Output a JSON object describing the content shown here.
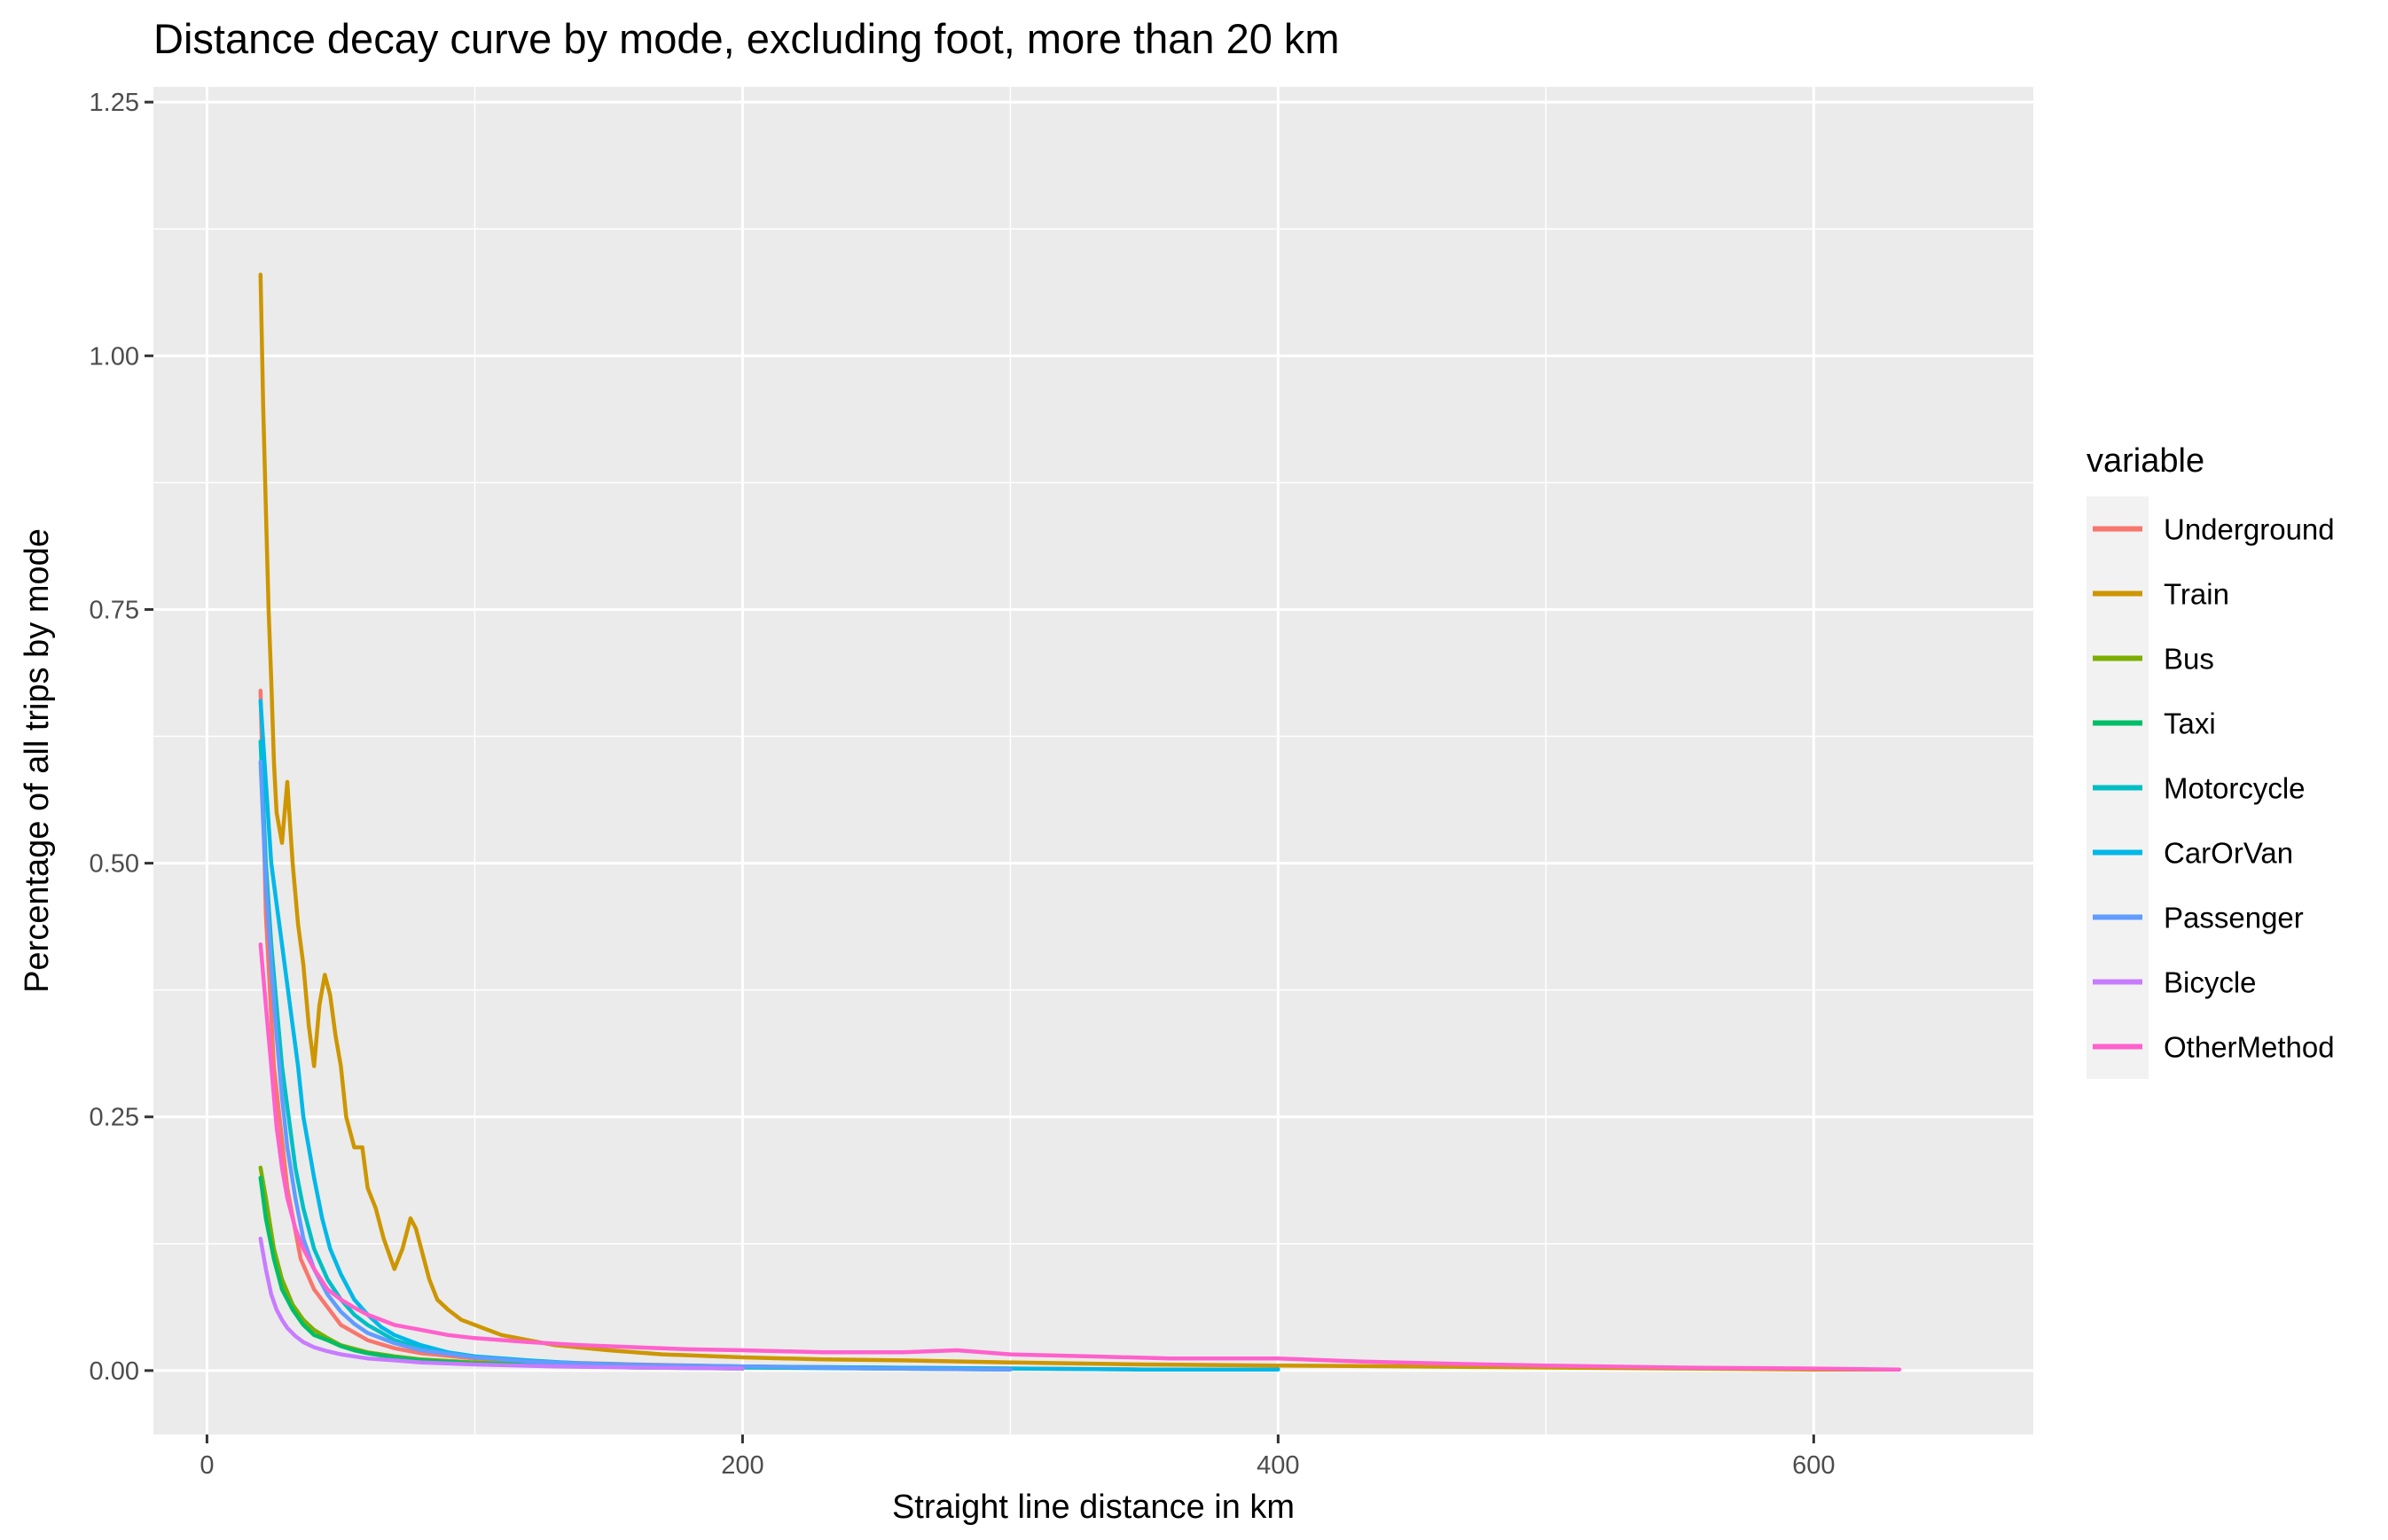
{
  "chart_data": {
    "type": "line",
    "title": "Distance decay curve by mode, excluding foot, more than 20 km",
    "xlabel": "Straight line distance in km",
    "ylabel": "Percentage of all trips by mode",
    "xlim": [
      -20,
      682
    ],
    "ylim": [
      -0.063,
      1.265
    ],
    "x_ticks": [
      0,
      200,
      400,
      600
    ],
    "y_ticks": [
      0.0,
      0.25,
      0.5,
      0.75,
      1.0,
      1.25
    ],
    "x_tick_labels": [
      "0",
      "200",
      "400",
      "600"
    ],
    "y_tick_labels": [
      "0.00",
      "0.25",
      "0.50",
      "0.75",
      "1.00",
      "1.25"
    ],
    "grid": true,
    "legend": {
      "title": "variable",
      "position": "right"
    },
    "series": [
      {
        "name": "Underground",
        "color": "#F8766D",
        "x": [
          20,
          22,
          25,
          30,
          35,
          40,
          50,
          60,
          70,
          80,
          100,
          130,
          160,
          200,
          250,
          300,
          350
        ],
        "y": [
          0.67,
          0.45,
          0.3,
          0.18,
          0.11,
          0.08,
          0.045,
          0.03,
          0.022,
          0.017,
          0.012,
          0.008,
          0.006,
          0.004,
          0.003,
          0.002,
          0.001
        ]
      },
      {
        "name": "Train",
        "color": "#CD9600",
        "x": [
          20,
          21,
          22,
          23,
          24,
          25,
          26,
          28,
          30,
          32,
          34,
          36,
          38,
          40,
          42,
          44,
          46,
          48,
          50,
          52,
          55,
          58,
          60,
          63,
          66,
          70,
          73,
          76,
          78,
          80,
          83,
          86,
          90,
          95,
          100,
          105,
          110,
          120,
          130,
          150,
          170,
          200,
          230,
          260,
          300,
          350,
          400,
          450,
          500,
          550,
          600,
          630
        ],
        "y": [
          1.08,
          0.95,
          0.85,
          0.75,
          0.68,
          0.6,
          0.55,
          0.52,
          0.58,
          0.5,
          0.44,
          0.4,
          0.34,
          0.3,
          0.36,
          0.39,
          0.37,
          0.33,
          0.3,
          0.25,
          0.22,
          0.22,
          0.18,
          0.16,
          0.13,
          0.1,
          0.12,
          0.15,
          0.14,
          0.12,
          0.09,
          0.07,
          0.06,
          0.05,
          0.045,
          0.04,
          0.035,
          0.03,
          0.025,
          0.02,
          0.016,
          0.013,
          0.011,
          0.01,
          0.008,
          0.006,
          0.005,
          0.004,
          0.003,
          0.002,
          0.001,
          0.001
        ]
      },
      {
        "name": "Bus",
        "color": "#7CAE00",
        "x": [
          20,
          22,
          25,
          28,
          32,
          36,
          40,
          45,
          50,
          60,
          70,
          80,
          100,
          130,
          160,
          200
        ],
        "y": [
          0.2,
          0.17,
          0.12,
          0.09,
          0.065,
          0.05,
          0.04,
          0.032,
          0.025,
          0.018,
          0.014,
          0.011,
          0.008,
          0.005,
          0.004,
          0.003
        ]
      },
      {
        "name": "Taxi",
        "color": "#00BE67",
        "x": [
          20,
          22,
          25,
          28,
          32,
          36,
          40,
          45,
          50,
          55,
          60,
          70,
          80,
          100,
          130,
          160,
          200
        ],
        "y": [
          0.19,
          0.15,
          0.11,
          0.08,
          0.06,
          0.045,
          0.035,
          0.03,
          0.024,
          0.02,
          0.017,
          0.013,
          0.01,
          0.007,
          0.005,
          0.003,
          0.002
        ]
      },
      {
        "name": "Motorcycle",
        "color": "#00BFC4",
        "x": [
          20,
          22,
          24,
          26,
          28,
          30,
          33,
          36,
          40,
          45,
          50,
          55,
          60,
          70,
          80,
          90,
          100,
          120,
          140,
          170,
          200,
          250,
          300
        ],
        "y": [
          0.62,
          0.5,
          0.42,
          0.36,
          0.3,
          0.26,
          0.2,
          0.16,
          0.12,
          0.09,
          0.07,
          0.055,
          0.045,
          0.03,
          0.022,
          0.017,
          0.013,
          0.009,
          0.007,
          0.005,
          0.003,
          0.002,
          0.001
        ]
      },
      {
        "name": "CarOrVan",
        "color": "#00B8E7",
        "x": [
          20,
          22,
          24,
          26,
          28,
          30,
          32,
          34,
          36,
          38,
          40,
          43,
          46,
          50,
          55,
          60,
          65,
          70,
          80,
          90,
          100,
          120,
          140,
          170,
          200,
          250,
          300,
          350,
          400
        ],
        "y": [
          0.66,
          0.58,
          0.5,
          0.46,
          0.42,
          0.38,
          0.34,
          0.3,
          0.25,
          0.22,
          0.19,
          0.15,
          0.12,
          0.095,
          0.07,
          0.055,
          0.043,
          0.035,
          0.025,
          0.018,
          0.014,
          0.01,
          0.007,
          0.005,
          0.004,
          0.003,
          0.002,
          0.001,
          0.001
        ]
      },
      {
        "name": "Passenger",
        "color": "#619CFF",
        "x": [
          20,
          22,
          24,
          26,
          28,
          30,
          33,
          36,
          40,
          45,
          50,
          55,
          60,
          70,
          80,
          100,
          120,
          150,
          200,
          250,
          300
        ],
        "y": [
          0.6,
          0.48,
          0.4,
          0.33,
          0.27,
          0.22,
          0.17,
          0.13,
          0.1,
          0.075,
          0.058,
          0.046,
          0.037,
          0.027,
          0.02,
          0.013,
          0.009,
          0.006,
          0.004,
          0.002,
          0.001
        ]
      },
      {
        "name": "Bicycle",
        "color": "#C77CFF",
        "x": [
          20,
          22,
          24,
          26,
          28,
          30,
          33,
          36,
          40,
          45,
          50,
          60,
          70,
          80,
          100,
          130,
          160,
          200
        ],
        "y": [
          0.13,
          0.1,
          0.075,
          0.06,
          0.05,
          0.042,
          0.034,
          0.028,
          0.023,
          0.019,
          0.016,
          0.012,
          0.01,
          0.008,
          0.006,
          0.004,
          0.003,
          0.002
        ]
      },
      {
        "name": "OtherMethod",
        "color": "#FF61CC",
        "x": [
          20,
          22,
          24,
          26,
          28,
          30,
          33,
          36,
          40,
          45,
          50,
          55,
          60,
          70,
          80,
          90,
          100,
          120,
          140,
          160,
          180,
          200,
          230,
          260,
          280,
          300,
          330,
          360,
          400,
          430,
          460,
          500,
          550,
          600,
          632
        ],
        "y": [
          0.42,
          0.36,
          0.3,
          0.24,
          0.2,
          0.17,
          0.14,
          0.12,
          0.1,
          0.08,
          0.07,
          0.062,
          0.055,
          0.045,
          0.04,
          0.035,
          0.032,
          0.028,
          0.025,
          0.023,
          0.021,
          0.02,
          0.018,
          0.018,
          0.02,
          0.016,
          0.014,
          0.012,
          0.012,
          0.009,
          0.007,
          0.005,
          0.003,
          0.002,
          0.001
        ]
      }
    ]
  }
}
